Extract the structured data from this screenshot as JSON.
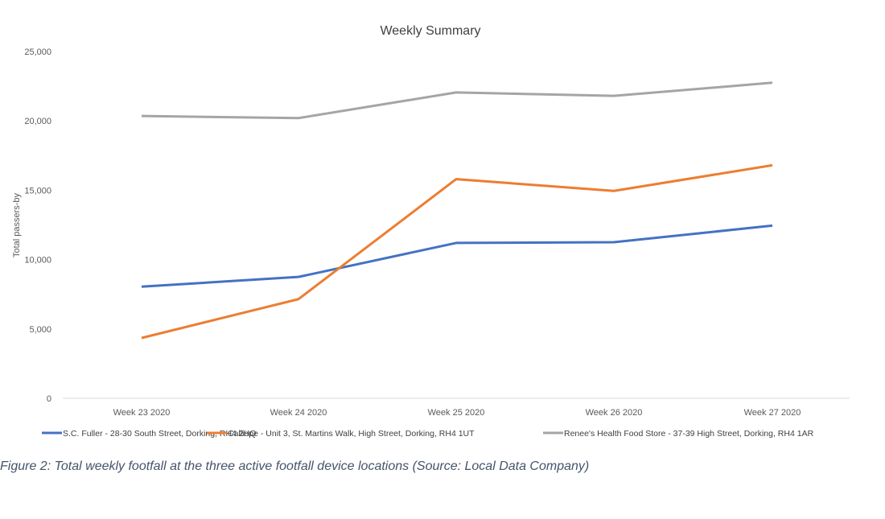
{
  "chart_data": {
    "type": "line",
    "title": "Weekly Summary",
    "xlabel": "",
    "ylabel": "Total passers-by",
    "ylim": [
      0,
      25000
    ],
    "yticks": [
      0,
      5000,
      10000,
      15000,
      20000,
      25000
    ],
    "ytick_labels": [
      "0",
      "5,000",
      "10,000",
      "15,000",
      "20,000",
      "25,000"
    ],
    "grid": false,
    "legend_position": "bottom",
    "categories": [
      "Week 23 2020",
      "Week 24 2020",
      "Week 25 2020",
      "Week 26 2020",
      "Week 27 2020"
    ],
    "series": [
      {
        "name": "S.C. Fuller - 28-30 South Street, Dorking, RH4 2HQ",
        "color": "#4472C4",
        "values": [
          8050,
          8750,
          11200,
          11250,
          12450
        ]
      },
      {
        "name": "Calliope - Unit 3, St. Martins Walk, High Street, Dorking, RH4 1UT",
        "color": "#ED7D31",
        "values": [
          4350,
          7150,
          15800,
          14950,
          16800
        ]
      },
      {
        "name": "Renee's Health Food Store - 37-39 High Street, Dorking, RH4 1AR",
        "color": "#A5A5A5",
        "values": [
          20350,
          20200,
          22050,
          21800,
          22750
        ]
      }
    ]
  },
  "caption": "Figure 2: Total weekly footfall at the three active footfall device locations (Source: Local Data Company)"
}
